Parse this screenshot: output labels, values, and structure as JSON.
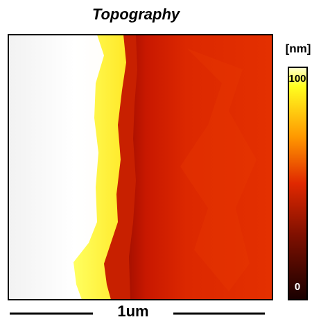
{
  "title": "Topography",
  "colorbar": {
    "unit": "[nm]",
    "max_label": "100",
    "min_label": "0"
  },
  "scale_bar": {
    "label": "1um"
  }
}
